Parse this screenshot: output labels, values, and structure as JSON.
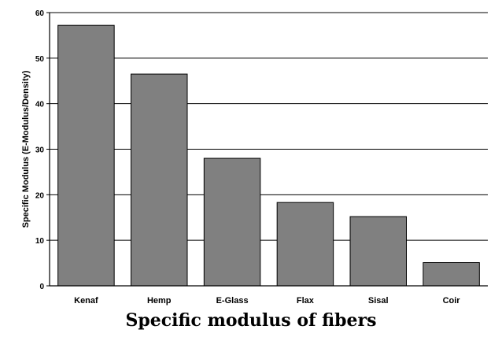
{
  "chart_data": {
    "type": "bar",
    "categories": [
      "Kenaf",
      "Hemp",
      "E-Glass",
      "Flax",
      "Sisal",
      "Coir"
    ],
    "values": [
      57.2,
      46.5,
      28.0,
      18.3,
      15.2,
      5.1
    ],
    "ylabel": "Specific Modulus (E-Modulus/Density)",
    "xlabel": "",
    "ylim": [
      0,
      60
    ],
    "yticks": [
      0,
      10,
      20,
      30,
      40,
      50,
      60
    ],
    "grid": true,
    "bar_color": "#808080"
  },
  "caption": "Specific modulus of fibers"
}
